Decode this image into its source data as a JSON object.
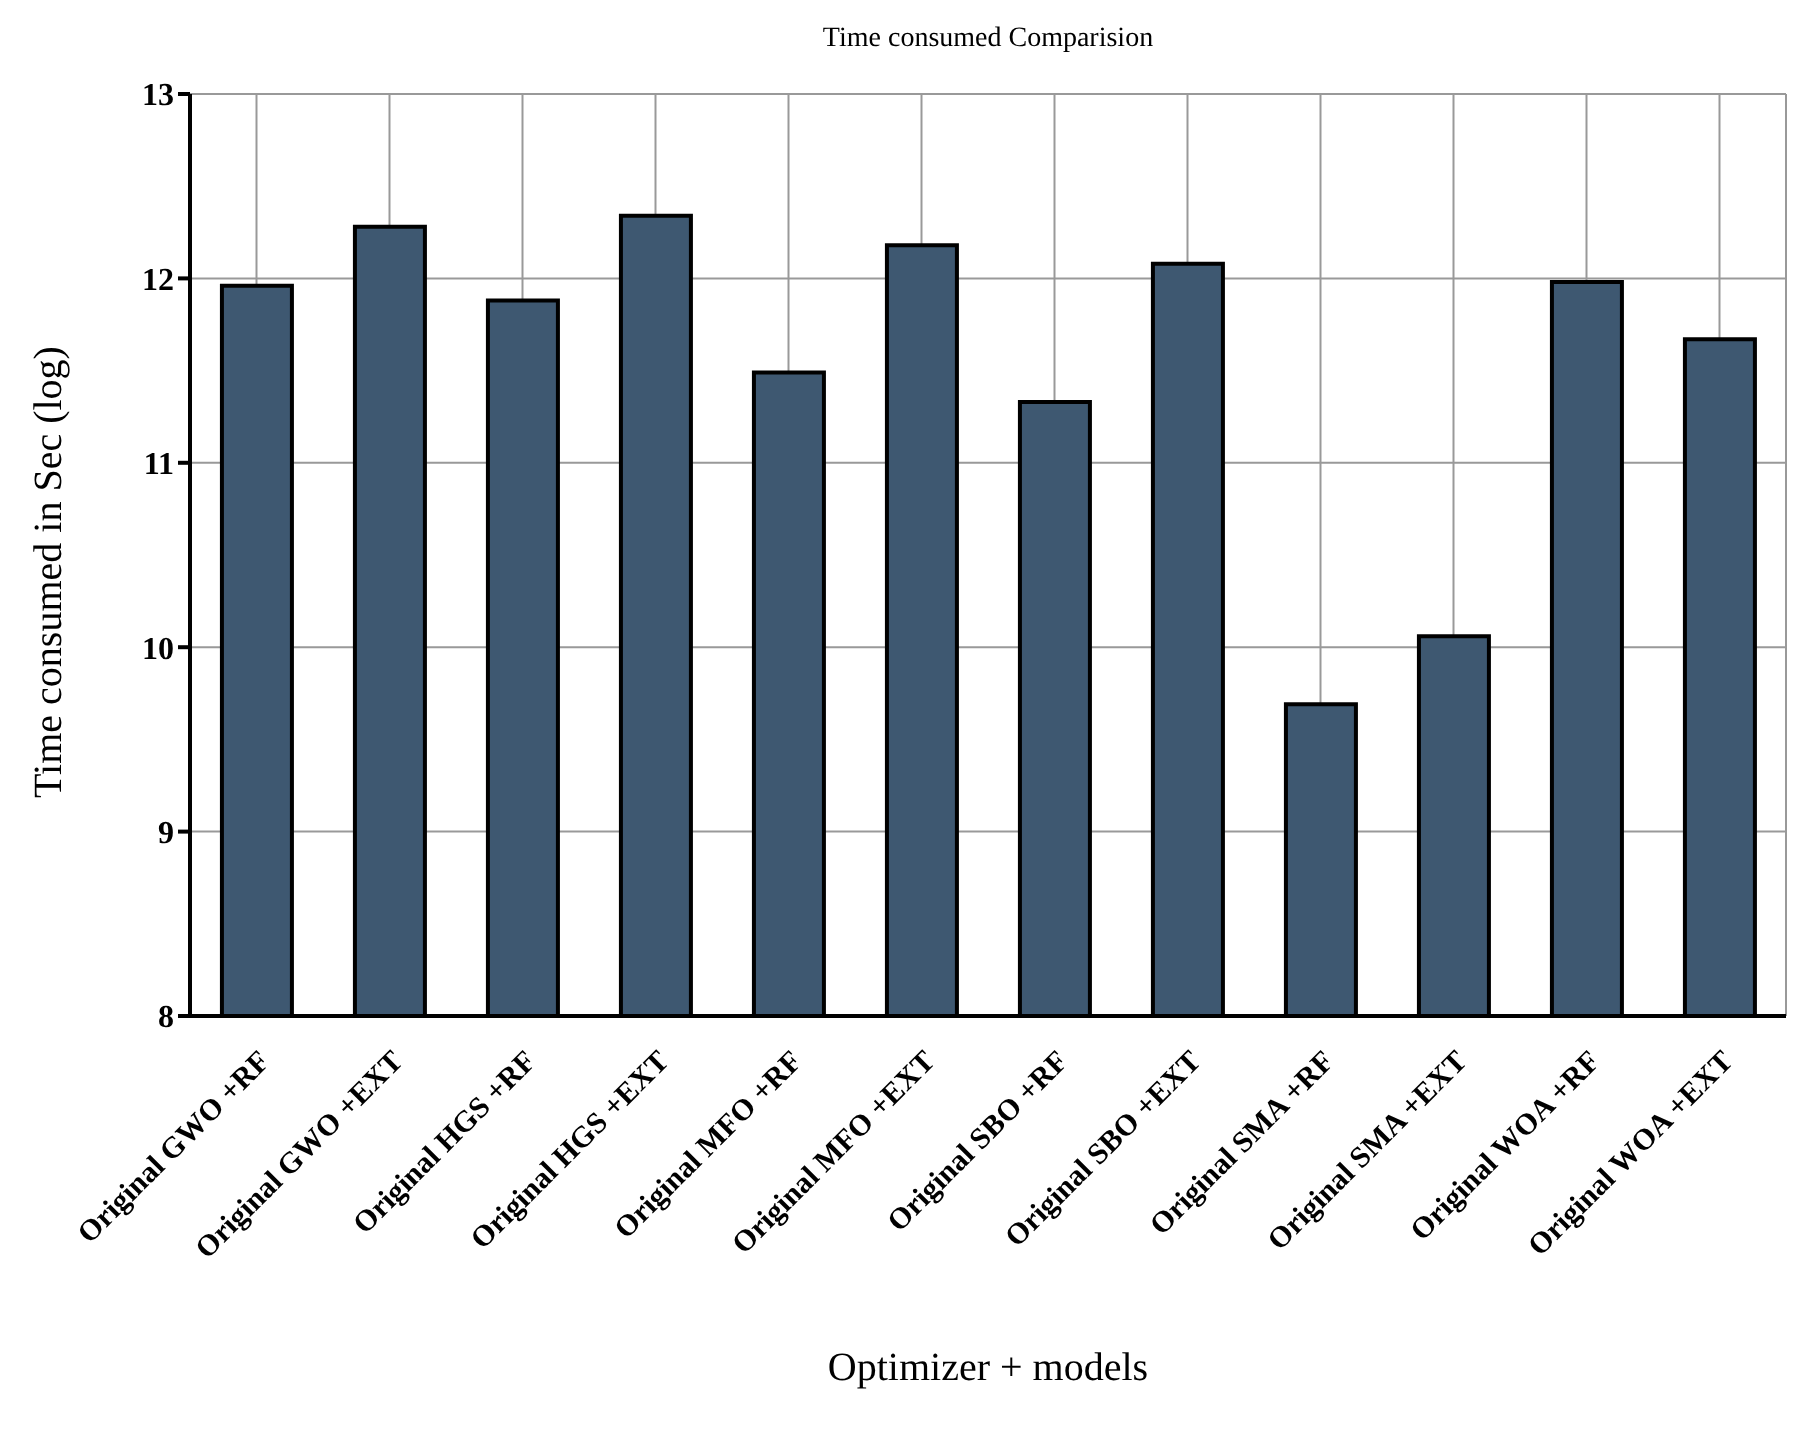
{
  "chart_data": {
    "type": "bar",
    "title": "Time consumed Comparision",
    "xlabel": "Optimizer + models",
    "ylabel": "Time consumed in Sec (log)",
    "categories": [
      "Original GWO +RF",
      "Original GWO +EXT",
      "Original HGS +RF",
      "Original HGS +EXT",
      "Original MFO +RF",
      "Original MFO +EXT",
      "Original SBO +RF",
      "Original SBO +EXT",
      "Original SMA +RF",
      "Original SMA +EXT",
      "Original WOA +RF",
      "Original WOA +EXT"
    ],
    "values": [
      11.96,
      12.28,
      11.88,
      12.34,
      11.49,
      12.18,
      11.33,
      12.08,
      9.69,
      10.06,
      11.98,
      11.67
    ],
    "color": "#3e5871",
    "ylim": [
      8,
      13
    ],
    "yticks": [
      8,
      9,
      10,
      11,
      12,
      13
    ],
    "grid": true
  }
}
